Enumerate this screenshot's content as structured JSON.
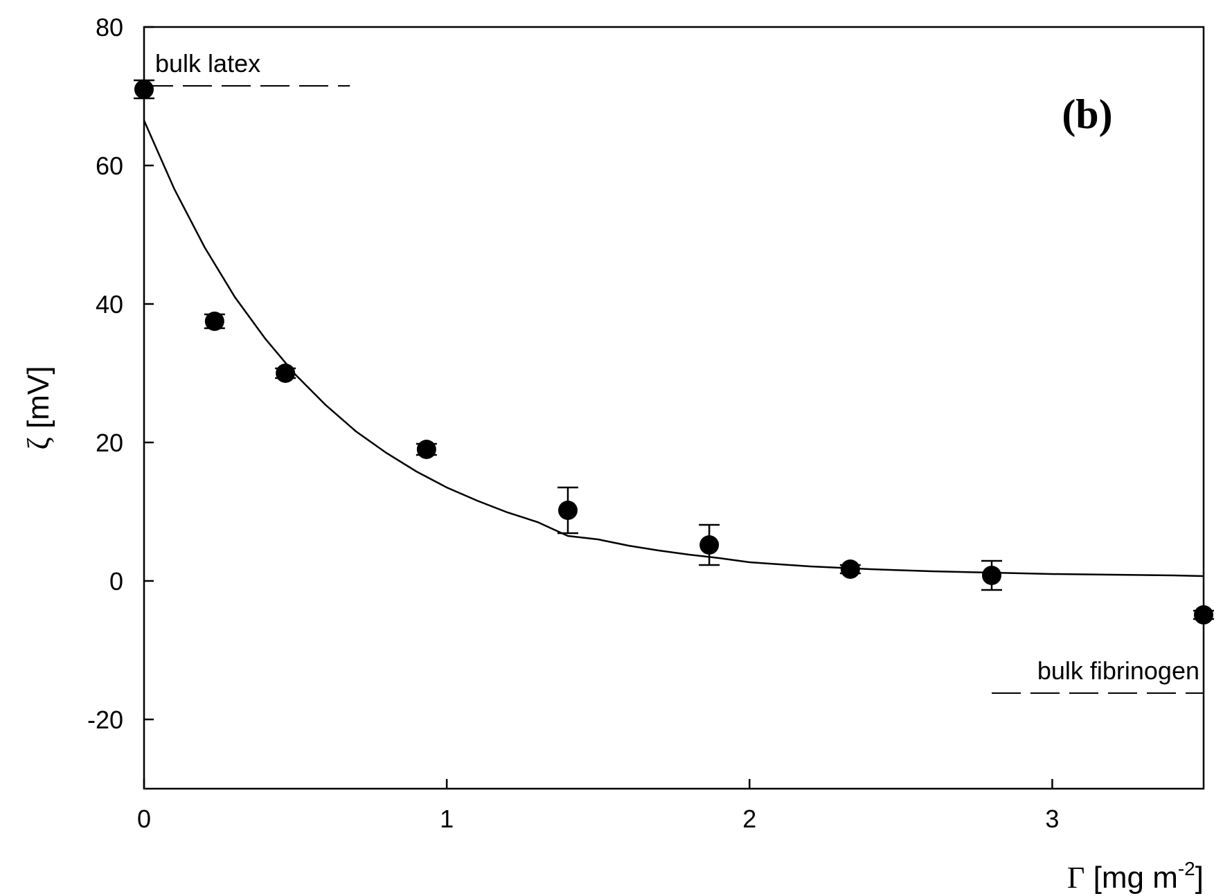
{
  "chart_data": {
    "type": "scatter",
    "panel_label": "(b)",
    "xlabel": {
      "symbol": "Γ",
      "text": " [mg m",
      "sup": "-2",
      "close": "]"
    },
    "ylabel": {
      "symbol": "ζ",
      "text": " [mV]"
    },
    "xlim": [
      0,
      3.5
    ],
    "ylim": [
      -30,
      80
    ],
    "xticks": [
      0,
      1,
      2,
      3
    ],
    "xtick_labels": [
      "0",
      "1",
      "2",
      "3"
    ],
    "yticks": [
      -20,
      0,
      20,
      40,
      60,
      80
    ],
    "ytick_labels": [
      "-20",
      "0",
      "20",
      "40",
      "60",
      "80"
    ],
    "grid": false,
    "series": [
      {
        "kind": "points_with_error_bars",
        "x": [
          0,
          0.233,
          0.467,
          0.933,
          1.4,
          1.867,
          2.333,
          2.8,
          3.5
        ],
        "y": [
          71,
          37.5,
          30,
          19,
          10.2,
          5.2,
          1.7,
          0.8,
          -4.9
        ],
        "err": [
          1.3,
          1.0,
          0.7,
          0.8,
          3.3,
          2.9,
          0.6,
          2.1,
          0.6
        ],
        "color": "#000000"
      },
      {
        "kind": "fit_curve",
        "x": [
          0,
          0.1,
          0.2,
          0.3,
          0.4,
          0.5,
          0.6,
          0.7,
          0.8,
          0.9,
          1.0,
          1.1,
          1.2,
          1.3,
          1.4,
          1.5,
          1.6,
          1.7,
          1.8,
          1.9,
          2.0,
          2.2,
          2.4,
          2.6,
          2.8,
          3.0,
          3.2,
          3.4,
          3.5
        ],
        "y": [
          66.5,
          56.6,
          48.2,
          41.0,
          35.0,
          29.8,
          25.4,
          21.6,
          18.5,
          15.8,
          13.5,
          11.6,
          9.9,
          8.5,
          6.5,
          6.0,
          5.1,
          4.4,
          3.8,
          3.3,
          2.7,
          2.1,
          1.7,
          1.4,
          1.2,
          1.0,
          0.9,
          0.8,
          0.7
        ],
        "color": "#000000"
      }
    ],
    "reference_lines": [
      {
        "label": "bulk latex",
        "y": 71.5,
        "x_range": [
          0,
          0.68
        ]
      },
      {
        "label": "bulk fibrinogen",
        "y": -16.2,
        "x_range": [
          2.8,
          3.5
        ]
      }
    ]
  }
}
